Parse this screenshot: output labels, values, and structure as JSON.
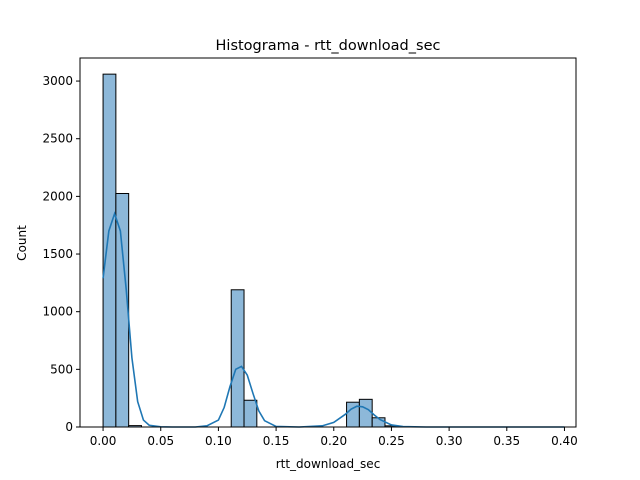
{
  "chart_data": {
    "type": "histogram",
    "title": "Histograma - rtt_download_sec",
    "xlabel": "rtt_download_sec",
    "ylabel": "Count",
    "xlim": [
      -0.02,
      0.41
    ],
    "ylim": [
      0,
      3200
    ],
    "xticks": [
      0.0,
      0.05,
      0.1,
      0.15,
      0.2,
      0.25,
      0.3,
      0.35,
      0.4
    ],
    "xtick_labels": [
      "0.00",
      "0.05",
      "0.10",
      "0.15",
      "0.20",
      "0.25",
      "0.30",
      "0.35",
      "0.40"
    ],
    "yticks": [
      0,
      500,
      1000,
      1500,
      2000,
      2500,
      3000
    ],
    "ytick_labels": [
      "0",
      "500",
      "1000",
      "1500",
      "2000",
      "2500",
      "3000"
    ],
    "grid": false,
    "legend": "none",
    "bin_width": 0.0111,
    "bins": [
      {
        "x0": 0.0,
        "count": 3060
      },
      {
        "x0": 0.0111,
        "count": 2025
      },
      {
        "x0": 0.0222,
        "count": 12
      },
      {
        "x0": 0.1111,
        "count": 1190
      },
      {
        "x0": 0.1222,
        "count": 232
      },
      {
        "x0": 0.2111,
        "count": 215
      },
      {
        "x0": 0.2222,
        "count": 240
      },
      {
        "x0": 0.2333,
        "count": 80
      },
      {
        "x0": 0.2444,
        "count": 10
      }
    ],
    "kde": {
      "x": [
        0.0,
        0.005,
        0.01,
        0.015,
        0.02,
        0.025,
        0.03,
        0.035,
        0.04,
        0.05,
        0.06,
        0.08,
        0.09,
        0.1,
        0.105,
        0.11,
        0.115,
        0.12,
        0.125,
        0.13,
        0.135,
        0.14,
        0.15,
        0.17,
        0.19,
        0.2,
        0.21,
        0.215,
        0.22,
        0.225,
        0.23,
        0.235,
        0.24,
        0.25,
        0.26,
        0.28,
        0.3,
        0.35,
        0.4
      ],
      "y": [
        1290,
        1700,
        1850,
        1700,
        1200,
        600,
        220,
        60,
        15,
        2,
        0,
        0,
        10,
        60,
        170,
        350,
        500,
        525,
        450,
        290,
        140,
        55,
        5,
        0,
        10,
        40,
        110,
        155,
        180,
        175,
        150,
        105,
        65,
        18,
        4,
        0,
        0,
        0,
        0
      ]
    },
    "colors": {
      "bar_fill": "#8db8d9",
      "bar_edge": "#000000",
      "kde_line": "#1f77b4"
    }
  }
}
